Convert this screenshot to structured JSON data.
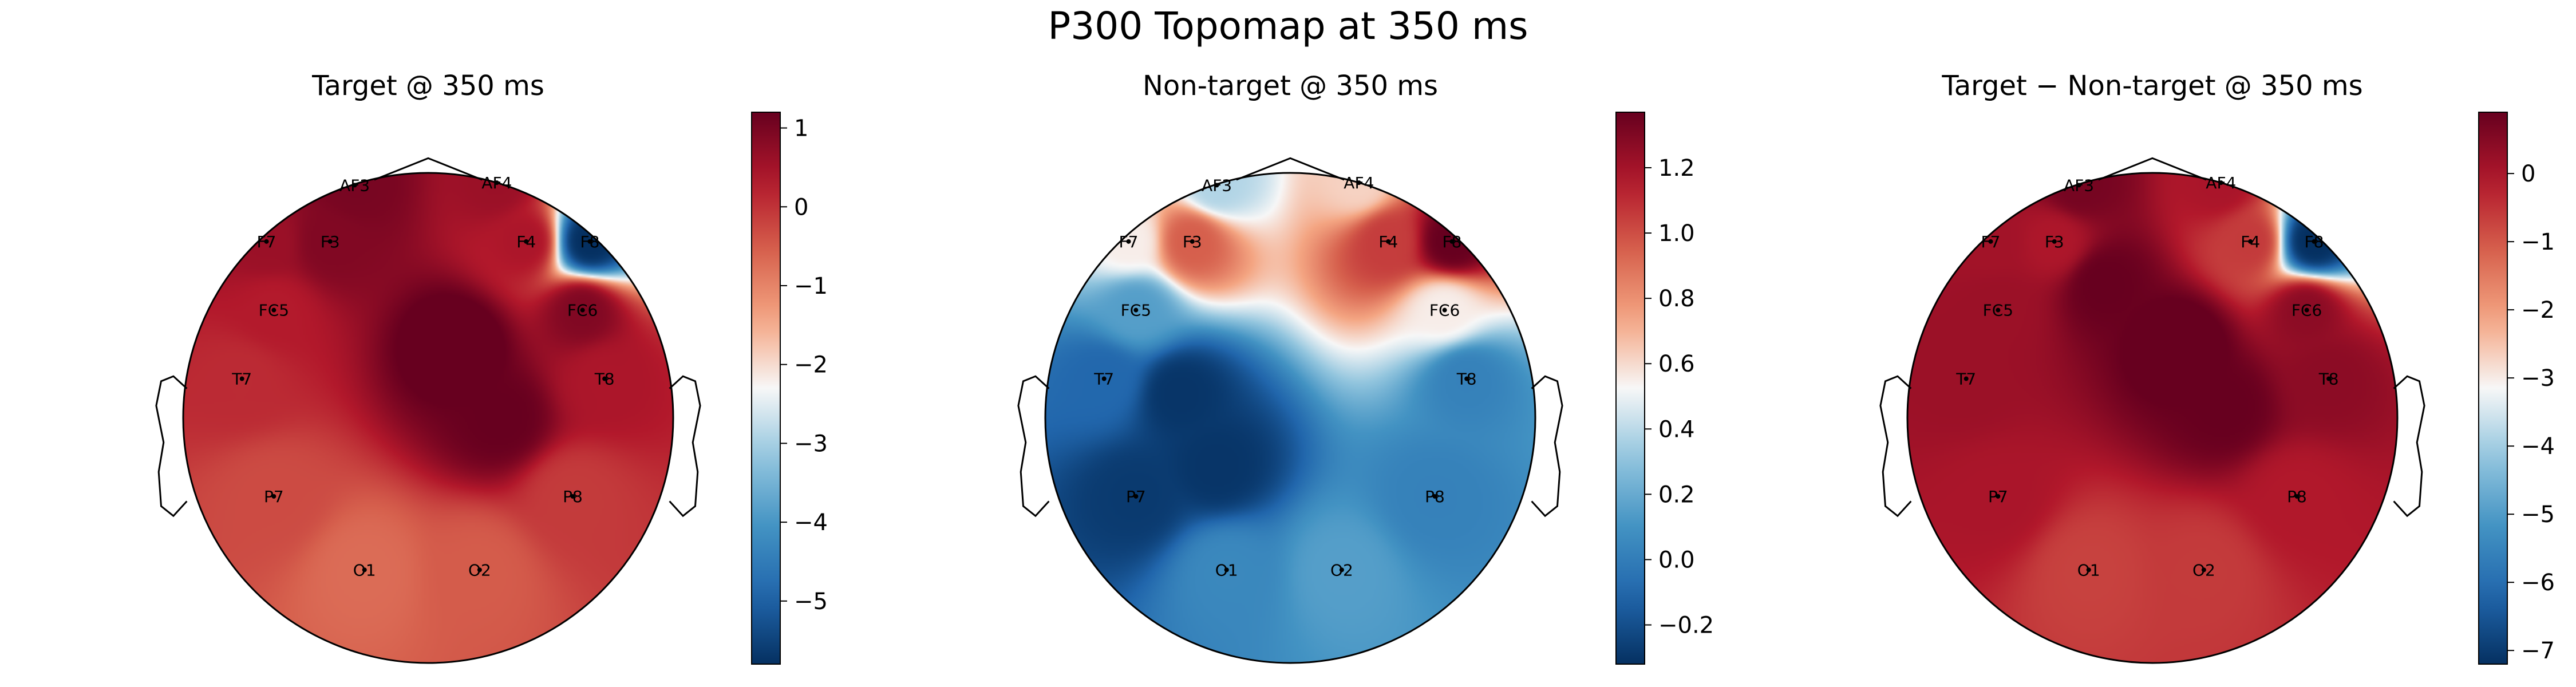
{
  "figure": {
    "suptitle": "P300 Topomap at 350 ms"
  },
  "chart_data": [
    {
      "type": "heatmap",
      "subtype": "eeg-topomap",
      "title": "Target @ 350 ms",
      "colormap": "RdBu_r",
      "vmin": -5.8,
      "vmax": 1.2,
      "colorbar_ticks": [
        1,
        0,
        -1,
        -2,
        -3,
        -4,
        -5
      ],
      "colorbar_tick_labels": [
        "1",
        "0",
        "−1",
        "−2",
        "−3",
        "−4",
        "−5"
      ],
      "channels": [
        {
          "name": "AF3",
          "value": 1.0
        },
        {
          "name": "AF4",
          "value": 0.6
        },
        {
          "name": "F7",
          "value": 0.6
        },
        {
          "name": "F3",
          "value": 0.9
        },
        {
          "name": "F4",
          "value": 0.4
        },
        {
          "name": "F8",
          "value": -5.8
        },
        {
          "name": "FC5",
          "value": 0.3
        },
        {
          "name": "FC6",
          "value": 0.9
        },
        {
          "name": "T7",
          "value": 0.1
        },
        {
          "name": "T8",
          "value": 0.4
        },
        {
          "name": "P7",
          "value": -0.3
        },
        {
          "name": "P8",
          "value": -0.1
        },
        {
          "name": "O1",
          "value": -0.7
        },
        {
          "name": "O2",
          "value": -0.5
        }
      ],
      "extra_sources": [
        {
          "x": 0.12,
          "y": 0.3,
          "value": 1.4
        },
        {
          "x": 0.3,
          "y": 0.0,
          "value": 1.2
        }
      ]
    },
    {
      "type": "heatmap",
      "subtype": "eeg-topomap",
      "title": "Non-target @ 350 ms",
      "colormap": "RdBu_r",
      "vmin": -0.32,
      "vmax": 1.37,
      "colorbar_ticks": [
        1.2,
        1.0,
        0.8,
        0.6,
        0.4,
        0.2,
        0.0,
        -0.2
      ],
      "colorbar_tick_labels": [
        "1.2",
        "1.0",
        "0.8",
        "0.6",
        "0.4",
        "0.2",
        "0.0",
        "−0.2"
      ],
      "channels": [
        {
          "name": "AF3",
          "value": 0.38
        },
        {
          "name": "AF4",
          "value": 0.62
        },
        {
          "name": "F7",
          "value": 0.55
        },
        {
          "name": "F3",
          "value": 0.95
        },
        {
          "name": "F4",
          "value": 1.05
        },
        {
          "name": "F8",
          "value": 1.37
        },
        {
          "name": "FC5",
          "value": 0.15
        },
        {
          "name": "FC6",
          "value": 0.55
        },
        {
          "name": "T7",
          "value": -0.1
        },
        {
          "name": "T8",
          "value": 0.02
        },
        {
          "name": "P7",
          "value": -0.28
        },
        {
          "name": "P8",
          "value": 0.02
        },
        {
          "name": "O1",
          "value": 0.05
        },
        {
          "name": "O2",
          "value": 0.15
        }
      ],
      "extra_sources": [
        {
          "x": -0.45,
          "y": 0.1,
          "value": -0.3
        },
        {
          "x": -0.3,
          "y": -0.2,
          "value": -0.3
        }
      ]
    },
    {
      "type": "heatmap",
      "subtype": "eeg-topomap",
      "title": "Target − Non-target @ 350 ms",
      "colormap": "RdBu_r",
      "vmin": -7.2,
      "vmax": 0.9,
      "colorbar_ticks": [
        0,
        -1,
        -2,
        -3,
        -4,
        -5,
        -6,
        -7
      ],
      "colorbar_tick_labels": [
        "0",
        "−1",
        "−2",
        "−3",
        "−4",
        "−5",
        "−6",
        "−7"
      ],
      "channels": [
        {
          "name": "AF3",
          "value": 0.7
        },
        {
          "name": "AF4",
          "value": 0.0
        },
        {
          "name": "F7",
          "value": 0.1
        },
        {
          "name": "F3",
          "value": -0.05
        },
        {
          "name": "F4",
          "value": -0.6
        },
        {
          "name": "F8",
          "value": -7.2
        },
        {
          "name": "FC5",
          "value": 0.2
        },
        {
          "name": "FC6",
          "value": 0.4
        },
        {
          "name": "T7",
          "value": 0.2
        },
        {
          "name": "T8",
          "value": 0.4
        },
        {
          "name": "P7",
          "value": 0.0
        },
        {
          "name": "P8",
          "value": -0.1
        },
        {
          "name": "O1",
          "value": -0.7
        },
        {
          "name": "O2",
          "value": -0.6
        }
      ],
      "extra_sources": [
        {
          "x": 0.12,
          "y": 0.3,
          "value": 1.1
        },
        {
          "x": 0.3,
          "y": 0.05,
          "value": 0.9
        },
        {
          "x": -0.2,
          "y": 0.55,
          "value": 0.9
        }
      ]
    }
  ]
}
